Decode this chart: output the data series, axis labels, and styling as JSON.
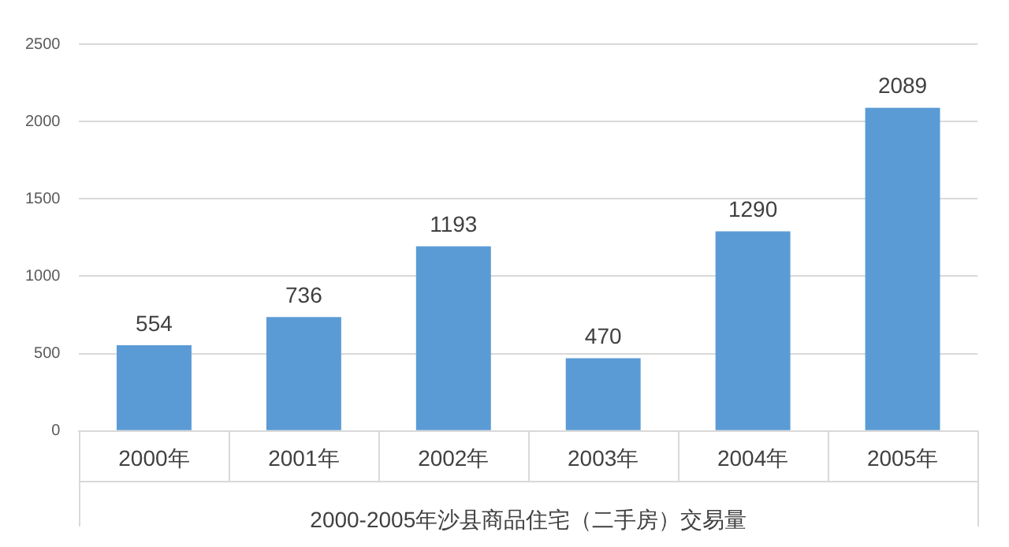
{
  "chart_data": {
    "type": "bar",
    "xlabel": "2000-2005年沙县商品住宅（二手房）交易量",
    "categories": [
      "2000年",
      "2001年",
      "2002年",
      "2003年",
      "2004年",
      "2005年"
    ],
    "values": [
      554,
      736,
      1193,
      470,
      1290,
      2089
    ],
    "color": "#5b9bd5",
    "ylim": [
      0,
      2500
    ],
    "yticks": [
      0,
      500,
      1000,
      1500,
      2000,
      2500
    ],
    "grid": "y",
    "data_labels": true,
    "legend": false
  }
}
